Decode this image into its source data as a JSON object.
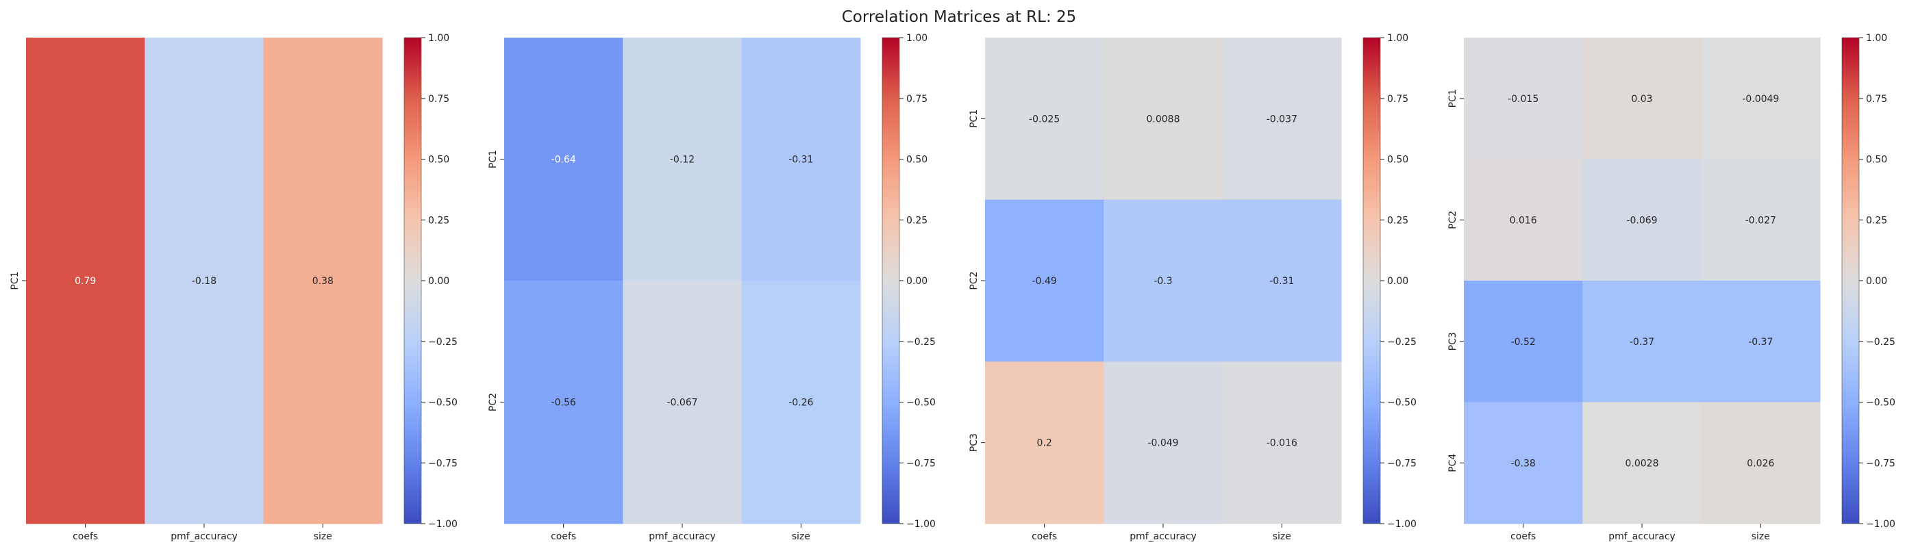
{
  "suptitle": "Correlation Matrices at RL: 25",
  "colorbar": {
    "vmin": -1.0,
    "vmax": 1.0,
    "ticks": [
      1.0,
      0.75,
      0.5,
      0.25,
      0.0,
      -0.25,
      -0.5,
      -0.75,
      -1.0
    ],
    "tick_labels": [
      "1.00",
      "0.75",
      "0.50",
      "0.25",
      "0.00",
      "−0.25",
      "−0.50",
      "−0.75",
      "−1.00"
    ],
    "colormap": "coolwarm",
    "colormap_stops": [
      "#3b4cc0",
      "#dddddd",
      "#b40426"
    ]
  },
  "chart_data": [
    {
      "type": "heatmap",
      "x_categories": [
        "coefs",
        "pmf_accuracy",
        "size"
      ],
      "y_categories": [
        "PC1"
      ],
      "values": [
        [
          0.79,
          -0.18,
          0.38
        ]
      ],
      "annotations": [
        [
          "0.79",
          "-0.18",
          "0.38"
        ]
      ],
      "color_range": [
        -1,
        1
      ]
    },
    {
      "type": "heatmap",
      "x_categories": [
        "coefs",
        "pmf_accuracy",
        "size"
      ],
      "y_categories": [
        "PC1",
        "PC2"
      ],
      "values": [
        [
          -0.64,
          -0.12,
          -0.31
        ],
        [
          -0.56,
          -0.067,
          -0.26
        ]
      ],
      "annotations": [
        [
          "-0.64",
          "-0.12",
          "-0.31"
        ],
        [
          "-0.56",
          "-0.067",
          "-0.26"
        ]
      ],
      "color_range": [
        -1,
        1
      ]
    },
    {
      "type": "heatmap",
      "x_categories": [
        "coefs",
        "pmf_accuracy",
        "size"
      ],
      "y_categories": [
        "PC1",
        "PC2",
        "PC3"
      ],
      "values": [
        [
          -0.025,
          0.0088,
          -0.037
        ],
        [
          -0.49,
          -0.3,
          -0.31
        ],
        [
          0.2,
          -0.049,
          -0.016
        ]
      ],
      "annotations": [
        [
          "-0.025",
          "0.0088",
          "-0.037"
        ],
        [
          "-0.49",
          "-0.3",
          "-0.31"
        ],
        [
          "0.2",
          "-0.049",
          "-0.016"
        ]
      ],
      "color_range": [
        -1,
        1
      ]
    },
    {
      "type": "heatmap",
      "x_categories": [
        "coefs",
        "pmf_accuracy",
        "size"
      ],
      "y_categories": [
        "PC1",
        "PC2",
        "PC3",
        "PC4"
      ],
      "values": [
        [
          -0.015,
          0.03,
          -0.0049
        ],
        [
          0.016,
          -0.069,
          -0.027
        ],
        [
          -0.52,
          -0.37,
          -0.37
        ],
        [
          -0.38,
          0.0028,
          0.026
        ]
      ],
      "annotations": [
        [
          "-0.015",
          "0.03",
          "-0.0049"
        ],
        [
          "0.016",
          "-0.069",
          "-0.027"
        ],
        [
          "-0.52",
          "-0.37",
          "-0.37"
        ],
        [
          "-0.38",
          "0.0028",
          "0.026"
        ]
      ],
      "color_range": [
        -1,
        1
      ]
    }
  ]
}
